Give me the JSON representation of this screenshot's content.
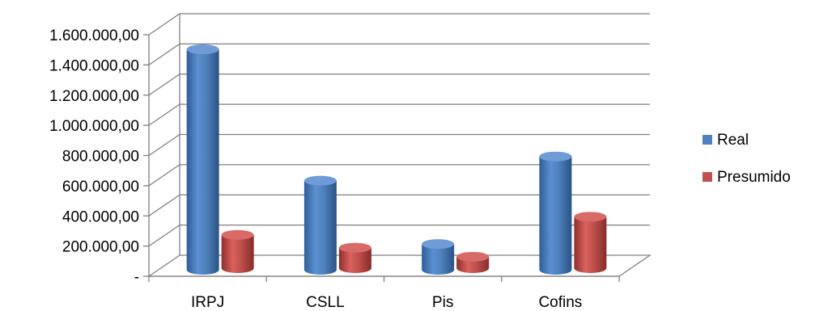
{
  "chart_data": {
    "type": "bar",
    "style": "3d-cylinder",
    "categories": [
      "IRPJ",
      "CSLL",
      "Pis",
      "Cofins"
    ],
    "series": [
      {
        "name": "Real",
        "color": "#4F81BD",
        "values": [
          1450000,
          580000,
          160000,
          740000
        ]
      },
      {
        "name": "Presumido",
        "color": "#C0504D",
        "values": [
          210000,
          125000,
          65000,
          330000
        ]
      }
    ],
    "y_ticks": [
      "-",
      "200.000,00",
      "400.000,00",
      "600.000,00",
      "800.000,00",
      "1.000.000,00",
      "1.200.000,00",
      "1.400.000,00",
      "1.600.000,00"
    ],
    "ylim": [
      0,
      1600000
    ],
    "grid": true,
    "legend_position": "right"
  }
}
